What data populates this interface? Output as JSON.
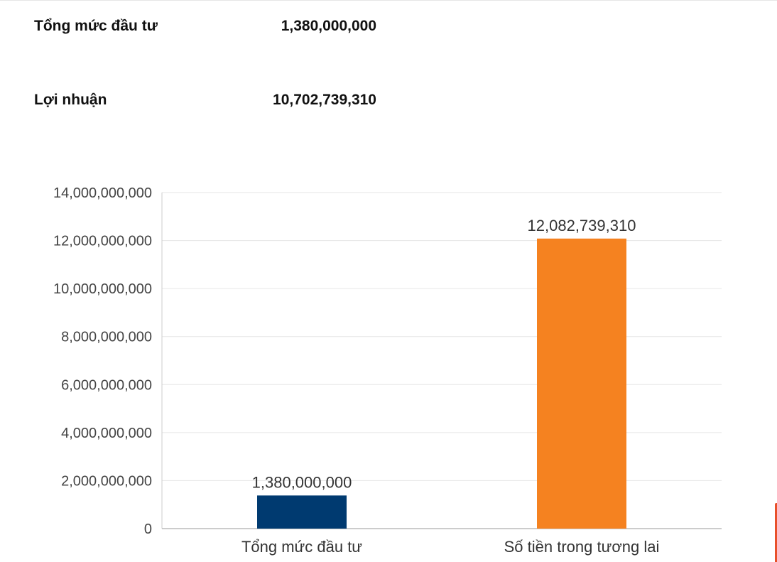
{
  "summary": {
    "investment_label": "Tổng mức đầu tư",
    "investment_value": "1,380,000,000",
    "profit_label": "Lợi nhuận",
    "profit_value": "10,702,739,310"
  },
  "chart_data": {
    "type": "bar",
    "title": "",
    "xlabel": "",
    "ylabel": "",
    "ylim": [
      0,
      14000000000
    ],
    "yticks": [
      0,
      2000000000,
      4000000000,
      6000000000,
      8000000000,
      10000000000,
      12000000000,
      14000000000
    ],
    "ytick_labels": [
      "0",
      "2,000,000,000",
      "4,000,000,000",
      "6,000,000,000",
      "8,000,000,000",
      "10,000,000,000",
      "12,000,000,000",
      "14,000,000,000"
    ],
    "categories": [
      "Tổng mức đầu tư",
      "Số tiền trong tương lai"
    ],
    "values": [
      1380000000,
      12082739310
    ],
    "data_labels": [
      "1,380,000,000",
      "12,082,739,310"
    ],
    "colors": [
      "#003a70",
      "#f58220"
    ],
    "grid": true,
    "legend": "none"
  }
}
